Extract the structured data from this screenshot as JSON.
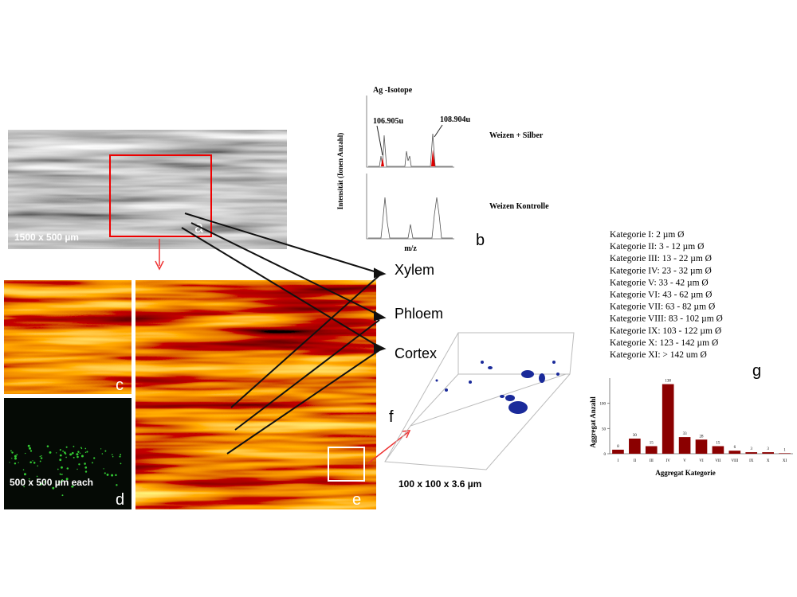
{
  "panel_a": {
    "letter": "a",
    "scale": "1500 x 500 µm"
  },
  "panel_b": {
    "letter": "b",
    "title": "Ag -Isotope",
    "peak_1": "106.905u",
    "peak_2": "108.904u",
    "ylabel": "Intensität (Ionen Anzahl)",
    "xlabel": "m/z",
    "top_label": "Weizen + Silber",
    "bottom_label": "Weizen  Kontrolle"
  },
  "panel_c": {
    "letter": "c"
  },
  "panel_d": {
    "letter": "d",
    "scale": "500 x 500 µm each"
  },
  "panel_e": {
    "letter": "e"
  },
  "panel_f": {
    "letter": "f",
    "scale": "100 x 100 x 3.6 µm"
  },
  "tissues": [
    "Xylem",
    "Phloem",
    "Cortex"
  ],
  "panel_g": {
    "letter": "g",
    "legend": [
      "Kategorie I: 2 µm Ø",
      "Kategorie II: 3 - 12 µm Ø",
      "Kategorie III: 13 - 22 µm Ø",
      "Kategorie IV: 23 - 32 µm Ø",
      "Kategorie V: 33 - 42 µm Ø",
      "Kategorie VI: 43 - 62 µm Ø",
      "Kategorie VII: 63 - 82 µm Ø",
      "Kategorie VIII: 83 - 102 µm Ø",
      "Kategorie IX: 103 - 122 µm Ø",
      "Kategorie X: 123 - 142 µm Ø",
      "Kategorie XI: > 142 um Ø"
    ]
  },
  "chart_data": {
    "type": "bar",
    "xlabel": "Aggregat Kategorie",
    "ylabel": "Aggregat Anzahl",
    "categories": [
      "I",
      "II",
      "III",
      "IV",
      "V",
      "VI",
      "VII",
      "VIII",
      "IX",
      "X",
      "XI"
    ],
    "values": [
      8,
      30,
      15,
      138,
      33,
      28,
      15,
      6,
      3,
      3,
      1
    ],
    "color": "#8b0000",
    "ylim": [
      0,
      150
    ],
    "yticks": [
      0,
      50,
      100
    ],
    "grid": false
  }
}
